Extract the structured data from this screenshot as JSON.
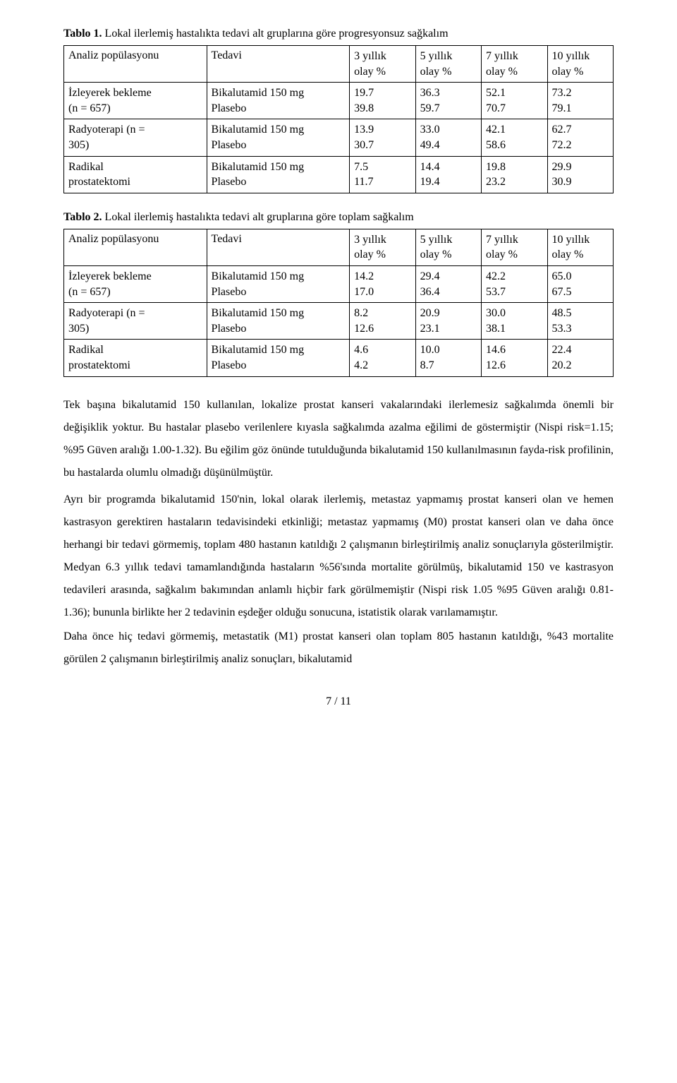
{
  "table1": {
    "caption_bold": "Tablo 1.",
    "caption_rest": " Lokal ilerlemiş hastalıkta tedavi alt gruplarına göre progresyonsuz sağkalım",
    "head_pop": "Analiz popülasyonu",
    "head_ted": "Tedavi",
    "head_c1a": "3 yıllık",
    "head_c1b": "olay %",
    "head_c2a": "5 yıllık",
    "head_c2b": "olay %",
    "head_c3a": "7 yıllık",
    "head_c3b": "olay %",
    "head_c4a": "10 yıllık",
    "head_c4b": "olay %",
    "r1_pop_a": "İzleyerek bekleme",
    "r1_pop_b": "(n = 657)",
    "r1_ted_a": "Bikalutamid 150 mg",
    "r1_ted_b": "Plasebo",
    "r1_c1a": "19.7",
    "r1_c1b": "39.8",
    "r1_c2a": "36.3",
    "r1_c2b": "59.7",
    "r1_c3a": "52.1",
    "r1_c3b": "70.7",
    "r1_c4a": "73.2",
    "r1_c4b": "79.1",
    "r2_pop_a": "Radyoterapi (n =",
    "r2_pop_b": "305)",
    "r2_ted_a": "Bikalutamid 150 mg",
    "r2_ted_b": "Plasebo",
    "r2_c1a": "13.9",
    "r2_c1b": "30.7",
    "r2_c2a": "33.0",
    "r2_c2b": "49.4",
    "r2_c3a": "42.1",
    "r2_c3b": "58.6",
    "r2_c4a": "62.7",
    "r2_c4b": "72.2",
    "r3_pop_a": "Radikal",
    "r3_pop_b": "prostatektomi",
    "r3_ted_a": "Bikalutamid 150 mg",
    "r3_ted_b": "Plasebo",
    "r3_c1a": "7.5",
    "r3_c1b": "11.7",
    "r3_c2a": "14.4",
    "r3_c2b": "19.4",
    "r3_c3a": "19.8",
    "r3_c3b": "23.2",
    "r3_c4a": "29.9",
    "r3_c4b": "30.9"
  },
  "table2": {
    "caption_bold": "Tablo 2.",
    "caption_rest": " Lokal ilerlemiş hastalıkta tedavi alt gruplarına göre toplam sağkalım",
    "head_pop": "Analiz popülasyonu",
    "head_ted": "Tedavi",
    "head_c1a": "3 yıllık",
    "head_c1b": "olay %",
    "head_c2a": "5 yıllık",
    "head_c2b": "olay %",
    "head_c3a": "7 yıllık",
    "head_c3b": "olay %",
    "head_c4a": "10 yıllık",
    "head_c4b": "olay %",
    "r1_pop_a": "İzleyerek bekleme",
    "r1_pop_b": "(n = 657)",
    "r1_ted_a": "Bikalutamid 150 mg",
    "r1_ted_b": "Plasebo",
    "r1_c1a": "14.2",
    "r1_c1b": "17.0",
    "r1_c2a": "29.4",
    "r1_c2b": "36.4",
    "r1_c3a": "42.2",
    "r1_c3b": "53.7",
    "r1_c4a": "65.0",
    "r1_c4b": "67.5",
    "r2_pop_a": "Radyoterapi (n =",
    "r2_pop_b": "305)",
    "r2_ted_a": "Bikalutamid 150 mg",
    "r2_ted_b": "Plasebo",
    "r2_c1a": "8.2",
    "r2_c1b": "12.6",
    "r2_c2a": "20.9",
    "r2_c2b": "23.1",
    "r2_c3a": "30.0",
    "r2_c3b": "38.1",
    "r2_c4a": "48.5",
    "r2_c4b": "53.3",
    "r3_pop_a": "Radikal",
    "r3_pop_b": "prostatektomi",
    "r3_ted_a": "Bikalutamid 150 mg",
    "r3_ted_b": "Plasebo",
    "r3_c1a": "4.6",
    "r3_c1b": "4.2",
    "r3_c2a": "10.0",
    "r3_c2b": "8.7",
    "r3_c3a": "14.6",
    "r3_c3b": "12.6",
    "r3_c4a": "22.4",
    "r3_c4b": "20.2"
  },
  "body": {
    "p1": "Tek başına bikalutamid 150 kullanılan, lokalize prostat kanseri vakalarındaki ilerlemesiz sağkalımda önemli bir değişiklik yoktur. Bu hastalar plasebo verilenlere kıyasla sağkalımda azalma eğilimi de göstermiştir (Nispi risk=1.15; %95 Güven aralığı 1.00-1.32). Bu eğilim göz önünde tutulduğunda bikalutamid 150 kullanılmasının fayda-risk profilinin, bu hastalarda olumlu olmadığı düşünülmüştür.",
    "p2": "Ayrı bir programda bikalutamid 150'nin, lokal olarak ilerlemiş, metastaz yapmamış prostat kanseri olan ve hemen kastrasyon gerektiren hastaların tedavisindeki etkinliği; metastaz yapmamış (M0) prostat kanseri olan ve daha önce herhangi bir tedavi görmemiş, toplam 480 hastanın katıldığı 2 çalışmanın birleştirilmiş analiz sonuçlarıyla gösterilmiştir. Medyan 6.3 yıllık tedavi tamamlandığında hastaların %56'sında mortalite görülmüş, bikalutamid 150 ve kastrasyon tedavileri arasında, sağkalım bakımından anlamlı hiçbir fark görülmemiştir (Nispi risk 1.05 %95 Güven aralığı 0.81-1.36); bununla birlikte her 2 tedavinin eşdeğer olduğu sonucuna, istatistik olarak varılamamıştır.",
    "p3": "Daha önce hiç tedavi görmemiş, metastatik (M1) prostat kanseri olan toplam 805 hastanın katıldığı, %43 mortalite görülen 2 çalışmanın birleştirilmiş analiz sonuçları, bikalutamid"
  },
  "footer": "7 / 11"
}
